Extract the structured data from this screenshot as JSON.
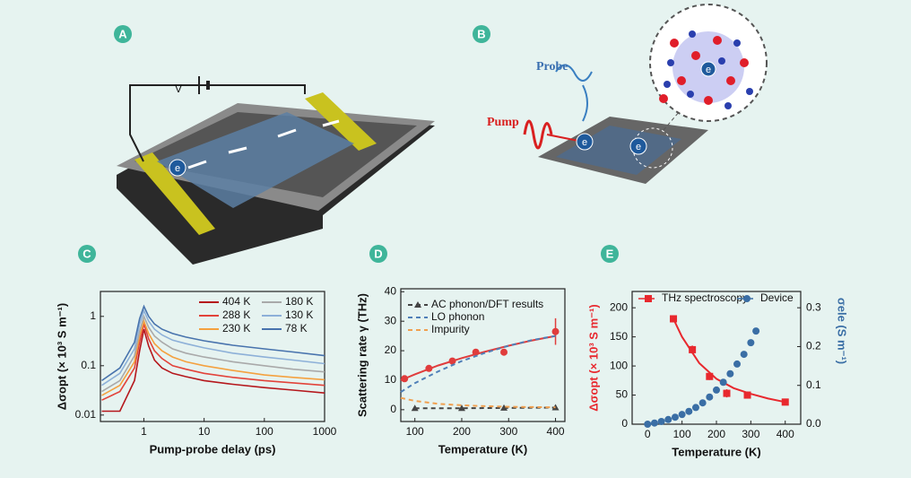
{
  "panels": [
    "A",
    "B",
    "C",
    "D",
    "E"
  ],
  "diagram_a": {
    "voltage": "V",
    "electron": "e"
  },
  "diagram_b": {
    "probe": "Probe",
    "pump": "Pump",
    "electrons": [
      "e",
      "e",
      "e"
    ]
  },
  "chart_data": [
    {
      "type": "line",
      "xlabel": "Pump-probe delay (ps)",
      "ylabel": "Δσopt (× 10³ S m⁻¹)",
      "xlog": true,
      "ylog": true,
      "xlim": [
        0.19,
        1000
      ],
      "ylim": [
        0.0074,
        3.2
      ],
      "xticks": [
        1,
        10,
        100,
        1000
      ],
      "yticks": [
        0.01,
        0.1,
        1
      ],
      "legend": "upper right",
      "x": [
        0.2,
        0.4,
        0.7,
        0.85,
        1,
        1.2,
        1.5,
        2,
        3,
        5,
        10,
        30,
        100,
        300,
        1000
      ],
      "series": [
        {
          "name": "404 K",
          "color": "#b5171c",
          "values": [
            0.012,
            0.012,
            0.05,
            0.2,
            0.55,
            0.25,
            0.13,
            0.09,
            0.07,
            0.06,
            0.05,
            0.042,
            0.036,
            0.032,
            0.028
          ]
        },
        {
          "name": "288 K",
          "color": "#e2433a",
          "values": [
            0.02,
            0.03,
            0.09,
            0.3,
            0.7,
            0.35,
            0.2,
            0.14,
            0.1,
            0.085,
            0.07,
            0.058,
            0.05,
            0.045,
            0.04
          ]
        },
        {
          "name": "230 K",
          "color": "#f4a13f",
          "values": [
            0.025,
            0.04,
            0.12,
            0.4,
            0.8,
            0.45,
            0.28,
            0.2,
            0.15,
            0.12,
            0.1,
            0.08,
            0.065,
            0.058,
            0.052
          ]
        },
        {
          "name": "180 K",
          "color": "#a9a9a9",
          "values": [
            0.03,
            0.05,
            0.16,
            0.5,
            1.0,
            0.6,
            0.4,
            0.3,
            0.22,
            0.18,
            0.15,
            0.12,
            0.1,
            0.085,
            0.075
          ]
        },
        {
          "name": "130 K",
          "color": "#8db0d8",
          "values": [
            0.04,
            0.07,
            0.22,
            0.7,
            1.3,
            0.8,
            0.55,
            0.42,
            0.33,
            0.28,
            0.23,
            0.18,
            0.15,
            0.13,
            0.11
          ]
        },
        {
          "name": "78 K",
          "color": "#4873ad",
          "values": [
            0.05,
            0.09,
            0.3,
            0.9,
            1.6,
            1.0,
            0.7,
            0.55,
            0.45,
            0.38,
            0.32,
            0.26,
            0.22,
            0.19,
            0.16
          ]
        }
      ]
    },
    {
      "type": "scatter",
      "xlabel": "Temperature (K)",
      "ylabel": "Scattering rate γ (THz)",
      "xlim": [
        70,
        420
      ],
      "ylim": [
        -4,
        41
      ],
      "xticks": [
        100,
        200,
        300,
        400
      ],
      "yticks": [
        0,
        10,
        20,
        30,
        40
      ],
      "legend": "upper left",
      "series": [
        {
          "color": "#e03c3c",
          "line": "solid",
          "x": [
            70,
            100,
            150,
            200,
            250,
            300,
            350,
            400
          ],
          "values": [
            10,
            12,
            15,
            17.5,
            19.7,
            21.7,
            23.5,
            25
          ]
        },
        {
          "color": "#e03c3c",
          "marker": "circle",
          "x": [
            78,
            130,
            180,
            230,
            290,
            400
          ],
          "values": [
            10.5,
            14,
            16.5,
            19.5,
            19.5,
            26.5
          ],
          "errors": [
            0.8,
            0.8,
            1,
            1,
            1,
            4.5
          ]
        },
        {
          "name": "AC phonon/DFT results",
          "color": "#444444",
          "line": "dashed",
          "marker": "triangle",
          "x": [
            100,
            200,
            290,
            400
          ],
          "values": [
            0.5,
            0.5,
            0.6,
            0.7
          ]
        },
        {
          "name": "LO phonon",
          "color": "#4f7fb8",
          "line": "dashed",
          "x": [
            70,
            100,
            150,
            200,
            250,
            300,
            350,
            400
          ],
          "values": [
            6,
            9,
            13,
            16.5,
            19.3,
            21.7,
            23.6,
            25
          ]
        },
        {
          "name": "Impurity",
          "color": "#f0a050",
          "line": "dashed",
          "x": [
            70,
            100,
            150,
            200,
            250,
            300,
            350,
            400
          ],
          "values": [
            4,
            3,
            2,
            1.5,
            1.2,
            1,
            0.9,
            0.8
          ]
        }
      ]
    },
    {
      "type": "scatter",
      "xlabel": "Temperature (K)",
      "ylabel": "Δσopt (× 10³ S m⁻¹)",
      "y2label": "σele (S m⁻¹)",
      "xlim": [
        -45,
        445
      ],
      "ylim": [
        0,
        228
      ],
      "y2lim": [
        0,
        0.342
      ],
      "xticks": [
        0,
        100,
        200,
        300,
        400
      ],
      "yticks": [
        0,
        50,
        100,
        150,
        200
      ],
      "y2ticks": [
        {
          "value": 0,
          "label": "0.0"
        },
        0.1,
        0.2,
        0.3
      ],
      "legend": "upper left",
      "series": [
        {
          "name": "THz spectroscopy",
          "color": "#e8282e",
          "marker": "square",
          "x": [
            75,
            130,
            180,
            230,
            290,
            400
          ],
          "values": [
            181,
            128,
            82,
            53,
            50,
            38
          ],
          "errors": [
            6,
            7,
            6,
            7,
            6,
            5
          ]
        },
        {
          "color": "#e8282e",
          "line": "solid",
          "x": [
            75,
            100,
            150,
            200,
            250,
            300,
            350,
            400
          ],
          "values": [
            181,
            150,
            105,
            78,
            62,
            52,
            44,
            38
          ]
        },
        {
          "name": "Device",
          "color": "#3a6ea5",
          "marker": "circle",
          "axis": "y2",
          "x": [
            0,
            20,
            40,
            60,
            80,
            100,
            120,
            140,
            160,
            180,
            200,
            220,
            240,
            260,
            280,
            300,
            315
          ],
          "values": [
            0,
            0.003,
            0.007,
            0.012,
            0.018,
            0.025,
            0.033,
            0.043,
            0.055,
            0.07,
            0.088,
            0.108,
            0.13,
            0.155,
            0.18,
            0.21,
            0.24
          ]
        }
      ]
    }
  ]
}
